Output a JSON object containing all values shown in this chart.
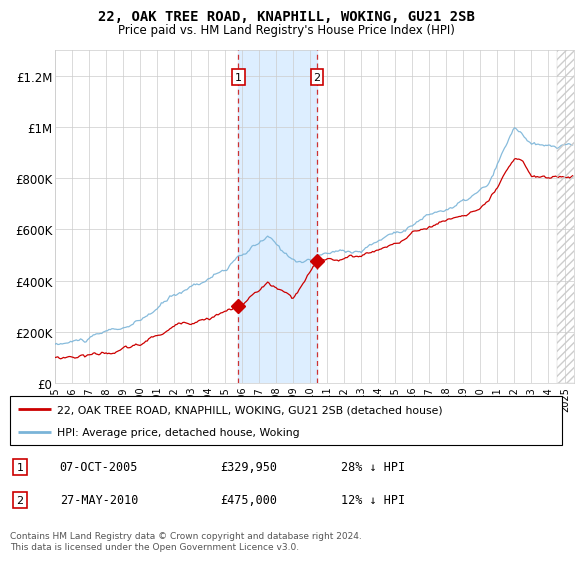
{
  "title": "22, OAK TREE ROAD, KNAPHILL, WOKING, GU21 2SB",
  "subtitle": "Price paid vs. HM Land Registry's House Price Index (HPI)",
  "legend_line1": "22, OAK TREE ROAD, KNAPHILL, WOKING, GU21 2SB (detached house)",
  "legend_line2": "HPI: Average price, detached house, Woking",
  "footer": "Contains HM Land Registry data © Crown copyright and database right 2024.\nThis data is licensed under the Open Government Licence v3.0.",
  "sale1_label": "1",
  "sale1_date": "07-OCT-2005",
  "sale1_price": "£329,950",
  "sale1_hpi": "28% ↓ HPI",
  "sale1_year": 2005.77,
  "sale1_value": 329950,
  "sale2_label": "2",
  "sale2_date": "27-MAY-2010",
  "sale2_price": "£475,000",
  "sale2_hpi": "12% ↓ HPI",
  "sale2_year": 2010.4,
  "sale2_value": 475000,
  "hpi_color": "#7ab4d8",
  "sale_color": "#cc0000",
  "shade_color": "#ddeeff",
  "ylim": [
    0,
    1300000
  ],
  "yticks": [
    0,
    200000,
    400000,
    600000,
    800000,
    1000000,
    1200000
  ],
  "ytick_labels": [
    "£0",
    "£200K",
    "£400K",
    "£600K",
    "£800K",
    "£1M",
    "£1.2M"
  ],
  "xmin": 1995,
  "xmax": 2025.5
}
